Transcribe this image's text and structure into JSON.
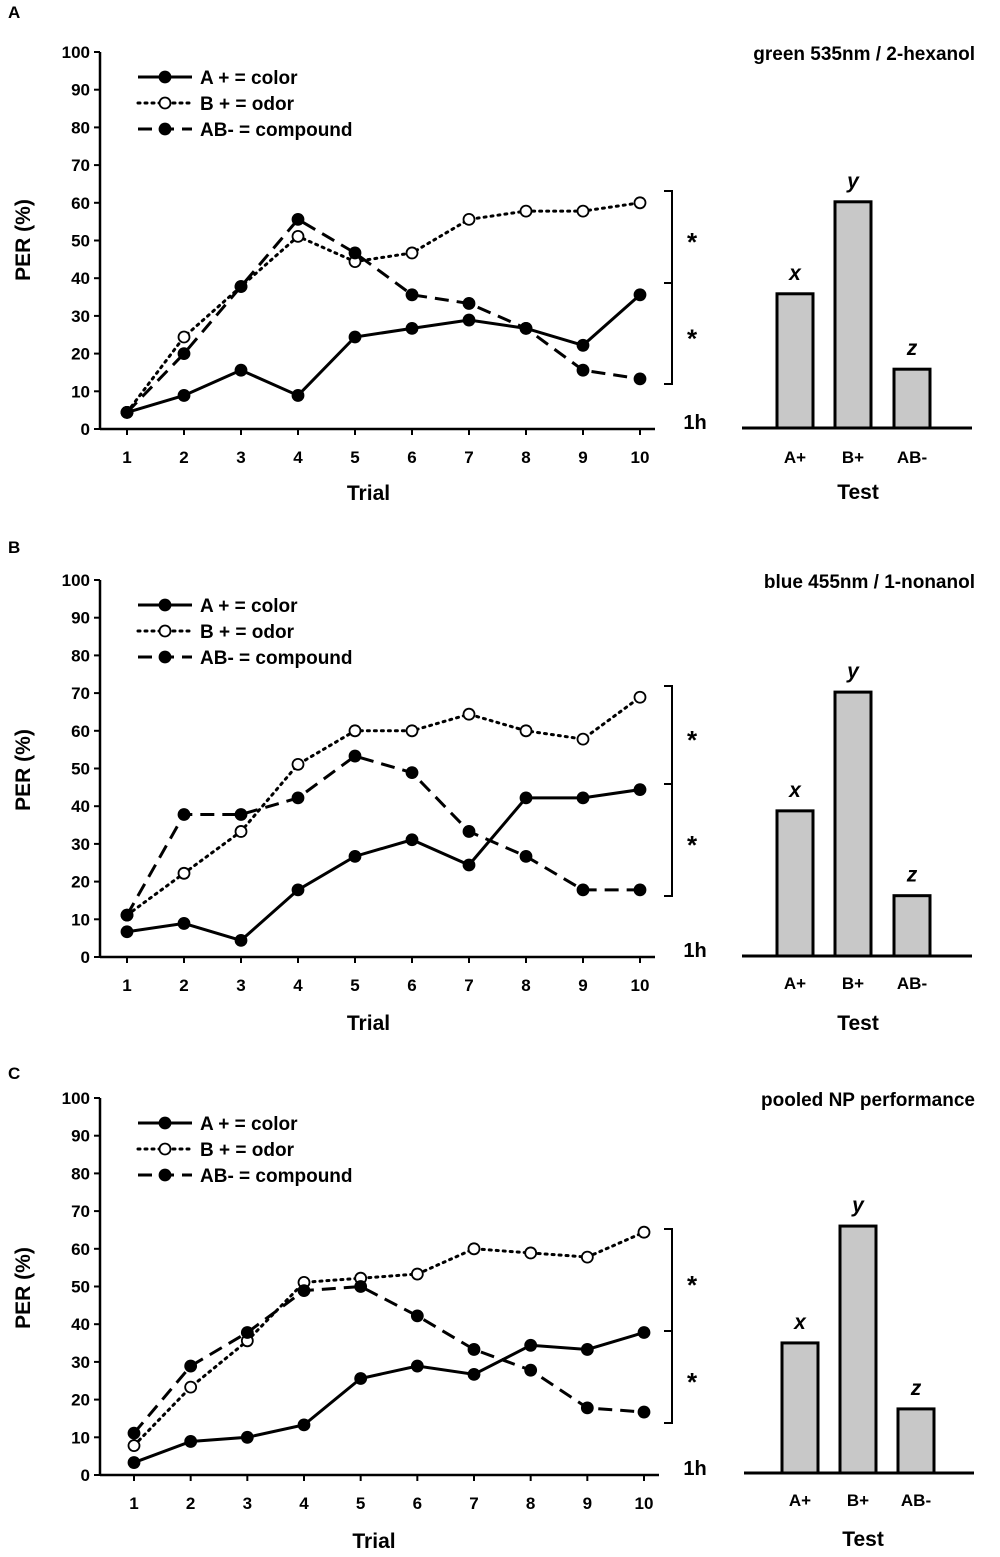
{
  "figure": {
    "panels": [
      {
        "letter": "A",
        "title": "green 535nm / 2-hexanol",
        "xlabel": "Trial",
        "ylabel": "PER (%)",
        "yticks": [
          "0",
          "10",
          "20",
          "30",
          "40",
          "50",
          "60",
          "70",
          "80",
          "90",
          "100"
        ],
        "xticks": [
          "1",
          "2",
          "3",
          "4",
          "5",
          "6",
          "7",
          "8",
          "9",
          "10"
        ],
        "legend": [
          "A + = color",
          "B + = odor",
          "AB- = compound"
        ],
        "bracket_marks": [
          "*",
          "*"
        ],
        "time_label": "1h",
        "test_label": "Test",
        "test_categories": [
          "A+",
          "B+",
          "AB-"
        ],
        "test_letters": [
          "x",
          "y",
          "z"
        ]
      },
      {
        "letter": "B",
        "title": "blue 455nm / 1-nonanol",
        "xlabel": "Trial",
        "ylabel": "PER (%)",
        "yticks": [
          "0",
          "10",
          "20",
          "30",
          "40",
          "50",
          "60",
          "70",
          "80",
          "90",
          "100"
        ],
        "xticks": [
          "1",
          "2",
          "3",
          "4",
          "5",
          "6",
          "7",
          "8",
          "9",
          "10"
        ],
        "legend": [
          "A + = color",
          "B + = odor",
          "AB- = compound"
        ],
        "bracket_marks": [
          "*",
          "*"
        ],
        "time_label": "1h",
        "test_label": "Test",
        "test_categories": [
          "A+",
          "B+",
          "AB-"
        ],
        "test_letters": [
          "x",
          "y",
          "z"
        ]
      },
      {
        "letter": "C",
        "title": "pooled NP performance",
        "xlabel": "Trial",
        "ylabel": "PER (%)",
        "yticks": [
          "0",
          "10",
          "20",
          "30",
          "40",
          "50",
          "60",
          "70",
          "80",
          "90",
          "100"
        ],
        "xticks": [
          "1",
          "2",
          "3",
          "4",
          "5",
          "6",
          "7",
          "8",
          "9",
          "10"
        ],
        "legend": [
          "A + = color",
          "B + = odor",
          "AB- = compound"
        ],
        "bracket_marks": [
          "*",
          "*"
        ],
        "time_label": "1h",
        "test_label": "Test",
        "test_categories": [
          "A+",
          "B+",
          "AB-"
        ],
        "test_letters": [
          "x",
          "y",
          "z"
        ]
      }
    ]
  },
  "chart_data": [
    {
      "type": "line",
      "title": "green 535nm / 2-hexanol",
      "xlabel": "Trial",
      "ylabel": "PER (%)",
      "x": [
        1,
        2,
        3,
        4,
        5,
        6,
        7,
        8,
        9,
        10
      ],
      "ylim": [
        0,
        100
      ],
      "series": [
        {
          "name": "A + = color",
          "style": "solid",
          "marker": "filled",
          "values": [
            4.4,
            8.9,
            15.6,
            8.9,
            24.4,
            26.7,
            28.9,
            26.7,
            22.2,
            35.6
          ]
        },
        {
          "name": "B + = odor",
          "style": "dotted",
          "marker": "open",
          "values": [
            4.4,
            24.4,
            37.8,
            51.1,
            44.4,
            46.7,
            55.6,
            57.8,
            57.8,
            60.0
          ]
        },
        {
          "name": "AB- = compound",
          "style": "dashed",
          "marker": "filled",
          "values": [
            4.4,
            20.0,
            37.8,
            55.6,
            46.7,
            35.6,
            33.3,
            26.7,
            15.6,
            13.3
          ]
        }
      ]
    },
    {
      "type": "bar",
      "title": "Test (1h) - green 535nm / 2-hexanol",
      "xlabel": "Test",
      "ylabel": "PER (%)",
      "categories": [
        "A+",
        "B+",
        "AB-"
      ],
      "values": [
        35.6,
        60.0,
        15.6
      ],
      "ylim": [
        0,
        100
      ]
    },
    {
      "type": "line",
      "title": "blue 455nm / 1-nonanol",
      "xlabel": "Trial",
      "ylabel": "PER (%)",
      "x": [
        1,
        2,
        3,
        4,
        5,
        6,
        7,
        8,
        9,
        10
      ],
      "ylim": [
        0,
        100
      ],
      "series": [
        {
          "name": "A + = color",
          "style": "solid",
          "marker": "filled",
          "values": [
            6.7,
            8.9,
            4.4,
            17.8,
            26.7,
            31.1,
            24.4,
            42.2,
            42.2,
            44.4
          ]
        },
        {
          "name": "B + = odor",
          "style": "dotted",
          "marker": "open",
          "values": [
            11.1,
            22.2,
            33.3,
            51.1,
            60.0,
            60.0,
            64.4,
            60.0,
            57.8,
            68.9
          ]
        },
        {
          "name": "AB- = compound",
          "style": "dashed",
          "marker": "filled",
          "values": [
            11.1,
            37.8,
            37.8,
            42.2,
            53.3,
            48.9,
            33.3,
            26.7,
            17.8,
            17.8
          ]
        }
      ]
    },
    {
      "type": "bar",
      "title": "Test (1h) - blue 455nm / 1-nonanol",
      "xlabel": "Test",
      "ylabel": "PER (%)",
      "categories": [
        "A+",
        "B+",
        "AB-"
      ],
      "values": [
        38.5,
        70.0,
        16.0
      ],
      "ylim": [
        0,
        100
      ]
    },
    {
      "type": "line",
      "title": "pooled NP performance",
      "xlabel": "Trial",
      "ylabel": "PER (%)",
      "x": [
        1,
        2,
        3,
        4,
        5,
        6,
        7,
        8,
        9,
        10
      ],
      "ylim": [
        0,
        100
      ],
      "series": [
        {
          "name": "A + = color",
          "style": "solid",
          "marker": "filled",
          "values": [
            3.3,
            8.9,
            10.0,
            13.3,
            25.6,
            28.9,
            26.7,
            34.4,
            33.3,
            37.8
          ]
        },
        {
          "name": "B + = odor",
          "style": "dotted",
          "marker": "open",
          "values": [
            7.8,
            23.3,
            35.6,
            51.1,
            52.2,
            53.3,
            60.0,
            58.9,
            57.8,
            64.4
          ]
        },
        {
          "name": "AB- = compound",
          "style": "dashed",
          "marker": "filled",
          "values": [
            11.1,
            28.9,
            37.8,
            48.9,
            50.0,
            42.2,
            33.3,
            27.8,
            17.8,
            16.7
          ]
        }
      ]
    },
    {
      "type": "bar",
      "title": "Test (1h) - pooled NP performance",
      "xlabel": "Test",
      "ylabel": "PER (%)",
      "categories": [
        "A+",
        "B+",
        "AB-"
      ],
      "values": [
        34.5,
        65.5,
        17.0
      ],
      "ylim": [
        0,
        100
      ]
    }
  ]
}
